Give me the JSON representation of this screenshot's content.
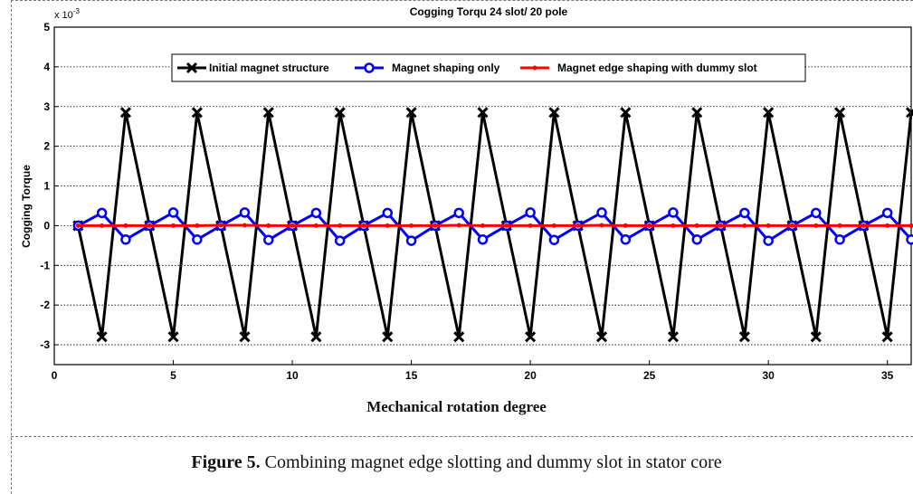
{
  "figure": {
    "label": "Figure 5.",
    "text": " Combining magnet edge slotting and dummy slot in stator core"
  },
  "chart_data": {
    "type": "line",
    "title": "Cogging Torqu 24 slot/ 20 pole",
    "xlabel": "Mechanical rotation degree",
    "ylabel": "Cogging Torque",
    "y_multiplier_label": "x 10",
    "y_multiplier_exponent": "-3",
    "xlim": [
      0,
      36
    ],
    "ylim": [
      -3.5,
      5
    ],
    "xticks": [
      0,
      5,
      10,
      15,
      20,
      25,
      30,
      35
    ],
    "yticks": [
      5,
      4,
      3,
      2,
      1,
      0,
      -1,
      -2,
      -3
    ],
    "grid": true,
    "legend_position": "top",
    "series": [
      {
        "name": "Initial magnet structure",
        "color": "#000000",
        "marker": "x",
        "x": [
          1,
          2,
          3,
          4,
          5,
          6,
          7,
          8,
          9,
          10,
          11,
          12,
          13,
          14,
          15,
          16,
          17,
          18,
          19,
          20,
          21,
          22,
          23,
          24,
          25,
          26,
          27,
          28,
          29,
          30,
          31,
          32,
          33,
          34,
          35,
          36
        ],
        "y": [
          0,
          -2.8,
          2.85,
          0,
          -2.8,
          2.85,
          0,
          -2.8,
          2.85,
          0,
          -2.8,
          2.85,
          0,
          -2.8,
          2.85,
          0,
          -2.8,
          2.85,
          0,
          -2.8,
          2.85,
          0,
          -2.8,
          2.85,
          0,
          -2.8,
          2.85,
          0,
          -2.8,
          2.85,
          0,
          -2.8,
          2.85,
          0,
          -2.8,
          2.85
        ]
      },
      {
        "name": "Magnet shaping only",
        "color": "#0000ff",
        "marker": "o",
        "x": [
          1,
          2,
          3,
          4,
          5,
          6,
          7,
          8,
          9,
          10,
          11,
          12,
          13,
          14,
          15,
          16,
          17,
          18,
          19,
          20,
          21,
          22,
          23,
          24,
          25,
          26,
          27,
          28,
          29,
          30,
          31,
          32,
          33,
          34,
          35,
          36
        ],
        "y": [
          0,
          0.32,
          -0.35,
          0,
          0.33,
          -0.35,
          0,
          0.33,
          -0.36,
          0,
          0.32,
          -0.38,
          0,
          0.32,
          -0.38,
          0,
          0.32,
          -0.35,
          0,
          0.33,
          -0.36,
          0,
          0.33,
          -0.35,
          0,
          0.33,
          -0.35,
          0,
          0.32,
          -0.38,
          0,
          0.32,
          -0.35,
          0,
          0.32,
          -0.35
        ]
      },
      {
        "name": "Magnet edge shaping with dummy slot",
        "color": "#ff0000",
        "marker": ".",
        "x": [
          1,
          2,
          3,
          4,
          5,
          6,
          7,
          8,
          9,
          10,
          11,
          12,
          13,
          14,
          15,
          16,
          17,
          18,
          19,
          20,
          21,
          22,
          23,
          24,
          25,
          26,
          27,
          28,
          29,
          30,
          31,
          32,
          33,
          34,
          35,
          36
        ],
        "y": [
          0,
          0,
          0,
          0,
          0,
          0,
          0.01,
          0.01,
          0,
          0,
          0,
          0,
          0,
          0,
          0,
          0,
          0.01,
          0,
          0,
          0,
          0,
          0,
          0.01,
          0,
          0,
          0,
          0,
          0,
          0,
          0,
          0,
          0,
          0,
          0,
          0,
          0
        ]
      }
    ]
  }
}
